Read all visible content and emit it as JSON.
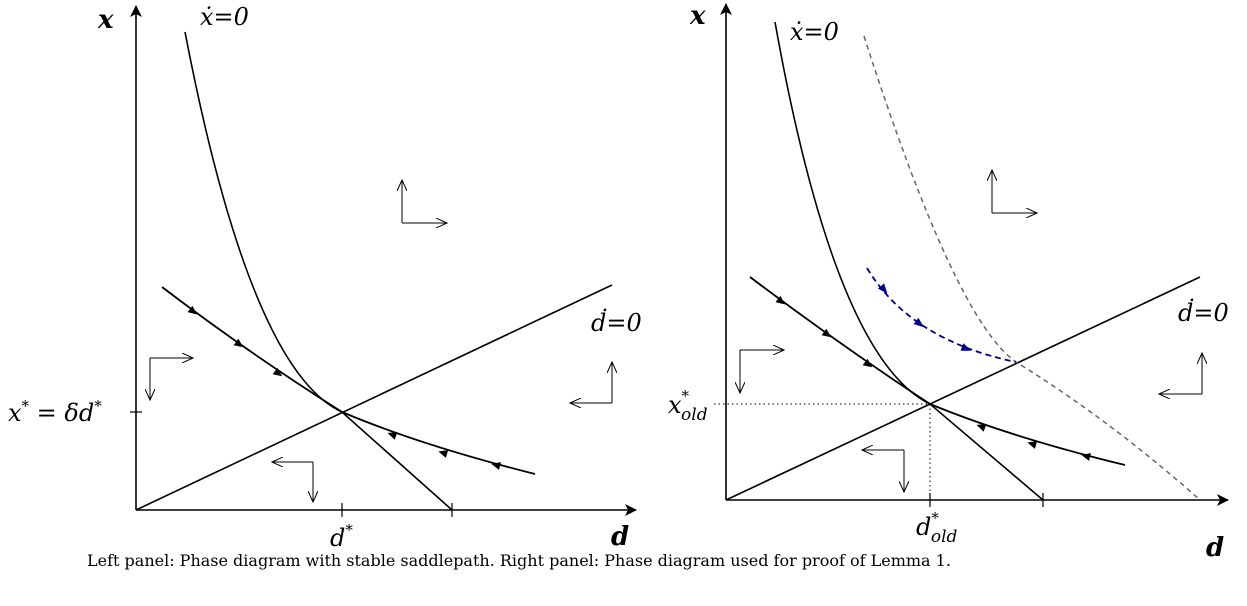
{
  "left_panel": {
    "y_axis_label": "x",
    "x_axis_label": "d",
    "xdot_label": "ẋ=0",
    "ddot_label": "ḋ=0",
    "ytick_label_lhs": "x",
    "ytick_label_mid": " = δd",
    "xtick_label": "d",
    "star": "*"
  },
  "right_panel": {
    "y_axis_label": "x",
    "x_axis_label": "d",
    "xdot_label": "ẋ=0",
    "ddot_label": "ḋ=0",
    "ytick_label": "x",
    "xtick_label": "d",
    "subscript": "old",
    "star": "*"
  },
  "caption": "Left panel: Phase diagram with stable saddlepath. Right panel: Phase diagram used for proof of Lemma 1.",
  "colors": {
    "ink": "#000000",
    "dashed_curve": "#666666",
    "adjustment_path": "#00008b"
  }
}
